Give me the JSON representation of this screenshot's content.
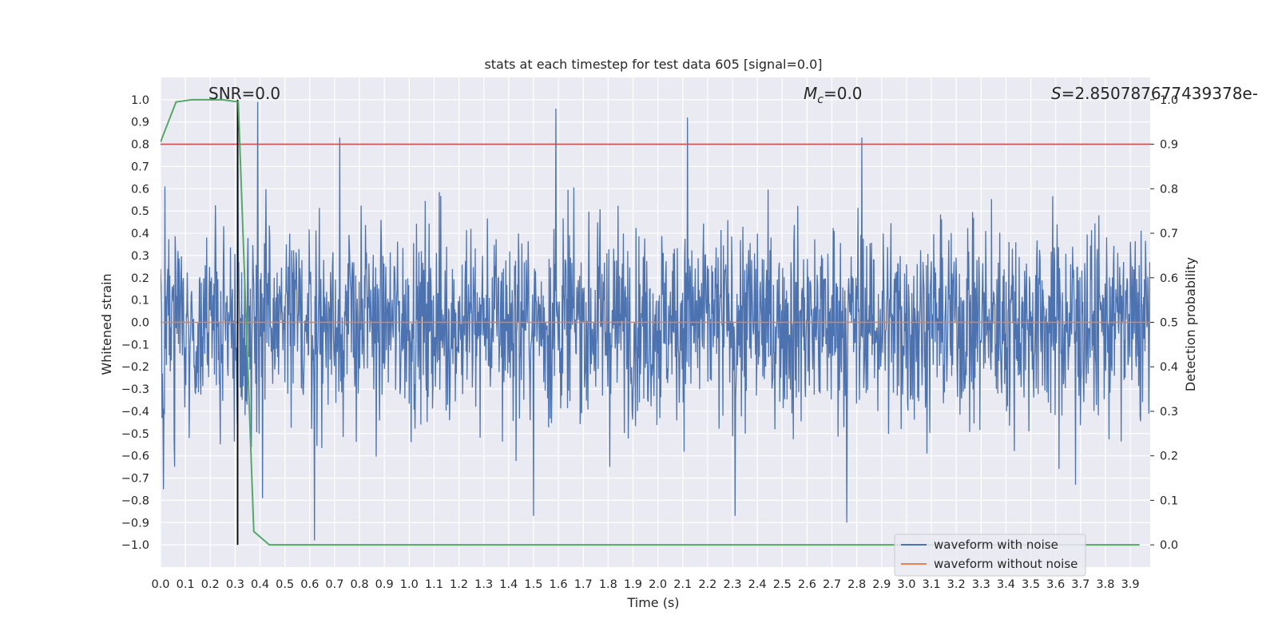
{
  "chart_data": {
    "type": "line",
    "title": "stats at each timestep for test data 605 [signal=0.0]",
    "xlabel": "Time (s)",
    "ylabel": "Whitened strain",
    "y2label": "Detection probability",
    "xlim": [
      0.0,
      3.98
    ],
    "ylim": [
      -1.1,
      1.1
    ],
    "y2lim": [
      -0.05,
      1.05
    ],
    "x_ticks": [
      "0.0",
      "0.1",
      "0.2",
      "0.3",
      "0.4",
      "0.5",
      "0.6",
      "0.7",
      "0.8",
      "0.9",
      "1.0",
      "1.1",
      "1.2",
      "1.3",
      "1.4",
      "1.5",
      "1.6",
      "1.7",
      "1.8",
      "1.9",
      "2.0",
      "2.1",
      "2.2",
      "2.3",
      "2.4",
      "2.5",
      "2.6",
      "2.7",
      "2.8",
      "2.9",
      "3.0",
      "3.1",
      "3.2",
      "3.3",
      "3.4",
      "3.5",
      "3.6",
      "3.7",
      "3.8",
      "3.9"
    ],
    "y_ticks": [
      "1.0",
      "0.9",
      "0.8",
      "0.7",
      "0.6",
      "0.5",
      "0.4",
      "0.3",
      "0.2",
      "0.1",
      "0.0",
      "−0.1",
      "−0.2",
      "−0.3",
      "−0.4",
      "−0.5",
      "−0.6",
      "−0.7",
      "−0.8",
      "−0.9",
      "−1.0"
    ],
    "y2_ticks": [
      "1.0",
      "0.9",
      "0.8",
      "0.7",
      "0.6",
      "0.5",
      "0.4",
      "0.3",
      "0.2",
      "0.1",
      "0.0"
    ],
    "grid": true,
    "legend_position": "lower-right",
    "annotations": {
      "snr": "SNR=0.0",
      "mc_symbol": "M",
      "mc_sub": "c",
      "mc_value": "=0.0",
      "s_symbol": "S",
      "s_value": "=2.850787677439378e-"
    },
    "series": [
      {
        "name": "waveform with noise",
        "axis": "left",
        "color": "#4c72b0",
        "description_kind": "noise",
        "sample_rate": 512,
        "envelope": 0.45,
        "peaks": [
          [
            0.012,
            -0.75
          ],
          [
            0.018,
            0.61
          ],
          [
            0.31,
            0.99
          ],
          [
            0.39,
            0.99
          ],
          [
            0.41,
            -0.79
          ],
          [
            0.62,
            -0.98
          ],
          [
            0.72,
            0.83
          ],
          [
            1.59,
            0.96
          ],
          [
            1.5,
            -0.87
          ],
          [
            2.12,
            0.92
          ],
          [
            2.31,
            -0.87
          ],
          [
            2.76,
            -0.9
          ],
          [
            2.82,
            0.83
          ],
          [
            3.68,
            -0.73
          ]
        ]
      },
      {
        "name": "waveform without noise",
        "axis": "left",
        "color": "#dd8452",
        "x": [
          0.0,
          3.98
        ],
        "y": [
          0.0,
          0.0
        ]
      },
      {
        "name": "",
        "axis": "right",
        "color": "#55a868",
        "x": [
          0.0,
          0.0625,
          0.125,
          0.1875,
          0.25,
          0.3125,
          0.375,
          0.4375,
          0.5,
          3.9375
        ],
        "y": [
          0.905,
          0.995,
          1.0,
          1.0,
          1.0,
          0.995,
          0.03,
          0.0,
          0.0,
          0.0
        ]
      }
    ],
    "threshold": {
      "axis": "left",
      "value": 0.8,
      "color": "#c44e52"
    },
    "marker_line": {
      "x": 0.31,
      "y_from": -1.0,
      "y_to": 1.0,
      "color": "#000000"
    }
  }
}
